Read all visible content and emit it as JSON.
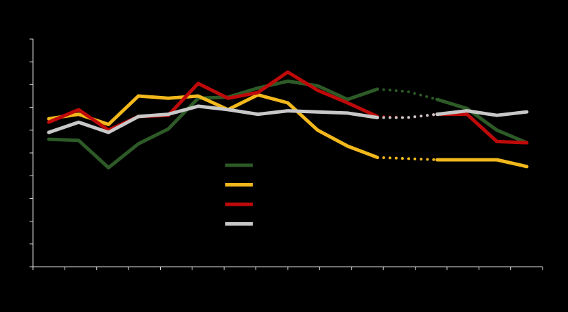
{
  "chart_data": {
    "type": "line",
    "x": [
      1,
      2,
      3,
      4,
      5,
      6,
      7,
      8,
      9,
      10,
      11,
      12,
      13,
      14,
      15,
      16,
      17
    ],
    "ylim": [
      0,
      10
    ],
    "grid": false,
    "legend_position": "center",
    "background": "#000000",
    "axis_color": "#e0e0e0",
    "series": [
      {
        "color": "#2d5a27",
        "values": [
          5.6,
          5.55,
          4.35,
          5.4,
          6.05,
          7.4,
          7.45,
          7.85,
          8.15,
          7.95,
          7.35,
          7.8,
          7.7,
          7.35,
          6.95,
          6.0,
          5.45
        ],
        "dotted_segment": [
          11,
          13
        ]
      },
      {
        "color": "#f2b81c",
        "values": [
          6.5,
          6.7,
          6.25,
          7.5,
          7.4,
          7.5,
          6.9,
          7.55,
          7.2,
          6.0,
          5.3,
          4.8,
          4.75,
          4.7,
          4.7,
          4.7,
          4.4
        ],
        "dotted_segment": [
          11,
          13
        ]
      },
      {
        "color": "#bf0a0a",
        "values": [
          6.35,
          6.9,
          6.0,
          6.6,
          6.65,
          8.05,
          7.4,
          7.65,
          8.55,
          7.75,
          7.2,
          6.6,
          6.55,
          6.7,
          6.7,
          5.5,
          5.45
        ],
        "dotted_segment": [
          11,
          13
        ]
      },
      {
        "color": "#c8c8c8",
        "values": [
          5.9,
          6.35,
          5.9,
          6.6,
          6.7,
          7.05,
          6.9,
          6.7,
          6.85,
          6.8,
          6.75,
          6.55,
          6.55,
          6.7,
          6.85,
          6.65,
          6.8
        ],
        "dotted_segment": [
          11,
          13
        ]
      }
    ]
  }
}
